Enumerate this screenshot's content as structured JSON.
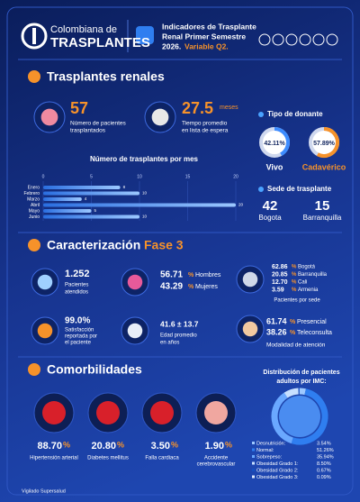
{
  "header": {
    "logo_top": "Colombiana de",
    "logo_bottom": "TRASPLANTES",
    "title_lines": [
      "Indicadores de Trasplante",
      "Renal Primer Semestre"
    ],
    "title_year": "2026.",
    "title_variable": "Variable Q2."
  },
  "renal": {
    "title": "Trasplantes renales",
    "patients": {
      "value": "57",
      "label_lines": [
        "Número de pacientes",
        "trasplantados"
      ]
    },
    "wait": {
      "value": "27.5",
      "unit": "meses",
      "label_lines": [
        "Tiempo promedio",
        "en lista de espera"
      ]
    },
    "donor": {
      "title": "Tipo de donante",
      "categories": [
        "Vivo",
        "Cadavérico"
      ],
      "values": [
        42.11,
        57.89
      ],
      "value_labels": [
        "42.11%",
        "57.89%"
      ]
    },
    "monthly": {
      "title": "Número de trasplantes por mes",
      "categories": [
        "Enero",
        "Febrero",
        "Marzo",
        "Abril",
        "Mayo",
        "Junio"
      ],
      "values": [
        8,
        10,
        4,
        20,
        5,
        10
      ],
      "xlim": [
        0,
        20
      ],
      "xticks": [
        0,
        5,
        10,
        15,
        20
      ]
    },
    "site": {
      "title": "Sede de trasplante",
      "items": [
        {
          "value": "42",
          "label": "Bogota"
        },
        {
          "value": "15",
          "label": "Barranquilla"
        }
      ]
    }
  },
  "caract": {
    "title": "Caracterización",
    "title_accent": "Fase 3",
    "attended": {
      "value": "1.252",
      "label_lines": [
        "Pacientes",
        "atendidos"
      ]
    },
    "sex": [
      {
        "value": "56.71",
        "unit": "%",
        "label": "Hombres"
      },
      {
        "value": "43.29",
        "unit": "%",
        "label": "Mujeres"
      }
    ],
    "sites": {
      "items": [
        {
          "value": "62.86",
          "unit": "%",
          "label": "Bogotá"
        },
        {
          "value": "20.85",
          "unit": "%",
          "label": "Barranquilla"
        },
        {
          "value": "12.70",
          "unit": "%",
          "label": "Cali"
        },
        {
          "value": "3.59",
          "unit": "%",
          "label": "Armenia"
        }
      ],
      "caption": "Pacientes por sede"
    },
    "satisfaction": {
      "value": "99.0%",
      "label_lines": [
        "Satisfacción",
        "reportada por",
        "el paciente"
      ]
    },
    "age": {
      "value": "41.6 ± 13.7",
      "label_lines": [
        "Edad promedio",
        "en años"
      ]
    },
    "modality": {
      "items": [
        {
          "value": "61.74",
          "unit": "%",
          "label": "Presencial"
        },
        {
          "value": "38.26",
          "unit": "%",
          "label": "Teleconsulta"
        }
      ],
      "caption": "Modalidad de atención"
    }
  },
  "comorb": {
    "title": "Comorbilidades",
    "items": [
      {
        "value": "88.70",
        "unit": "%",
        "label_lines": [
          "Hipertensión arterial"
        ]
      },
      {
        "value": "20.80",
        "unit": "%",
        "label_lines": [
          "Diabetes mellitus"
        ]
      },
      {
        "value": "3.50",
        "unit": "%",
        "label_lines": [
          "Falla cardiaca"
        ]
      },
      {
        "value": "1.90",
        "unit": "%",
        "label_lines": [
          "Accidente",
          "cerebrovascular"
        ]
      }
    ],
    "imc": {
      "title_lines": [
        "Distribución de pacientes",
        "adultos por IMC:"
      ],
      "categories": [
        "Desnutrición:",
        "Normal:",
        "Sobrepeso:",
        "Obesidad Grado 1:",
        "Obesidad Grado 2:",
        "Obesidad Grado 3:"
      ],
      "values": [
        3.54,
        51.26,
        35.94,
        8.5,
        0.67,
        0.09
      ],
      "value_labels": [
        "3.54%",
        "51.26%",
        "35.94%",
        "8.50%",
        "0.67%",
        "0.09%"
      ]
    }
  },
  "footer": "Vigilado Supersalud"
}
